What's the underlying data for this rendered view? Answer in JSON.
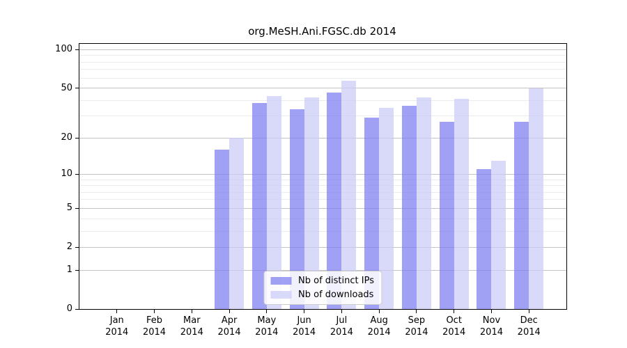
{
  "chart_data": {
    "type": "bar",
    "title": "org.MeSH.Ani.FGSC.db 2014",
    "categories": [
      "Jan",
      "Feb",
      "Mar",
      "Apr",
      "May",
      "Jun",
      "Jul",
      "Aug",
      "Sep",
      "Oct",
      "Nov",
      "Dec"
    ],
    "year_label": "2014",
    "series": [
      {
        "name": "Nb of distinct IPs",
        "color": "#7b7bf0",
        "opacity": 0.72,
        "values": [
          0,
          0,
          0,
          16,
          38,
          34,
          46,
          29,
          36,
          27,
          11,
          27
        ]
      },
      {
        "name": "Nb of downloads",
        "color": "#cacaf8",
        "opacity": 0.72,
        "values": [
          0,
          0,
          0,
          20,
          43,
          42,
          57,
          35,
          42,
          41,
          13,
          50
        ]
      }
    ],
    "xlabel": "",
    "ylabel": "",
    "yscale": "log1p",
    "yticks": [
      0,
      1,
      2,
      5,
      10,
      20,
      50,
      100
    ],
    "minor_yticks": [
      3,
      4,
      6,
      7,
      8,
      9,
      30,
      40,
      60,
      70,
      80,
      90
    ],
    "ylim": [
      0,
      111
    ],
    "grid": true,
    "legend_position": "lower center",
    "major_grid_color": "#c3c3c3",
    "minor_grid_color": "#ebebeb",
    "axis_color": "#000000",
    "background_color": "#ffffff"
  }
}
